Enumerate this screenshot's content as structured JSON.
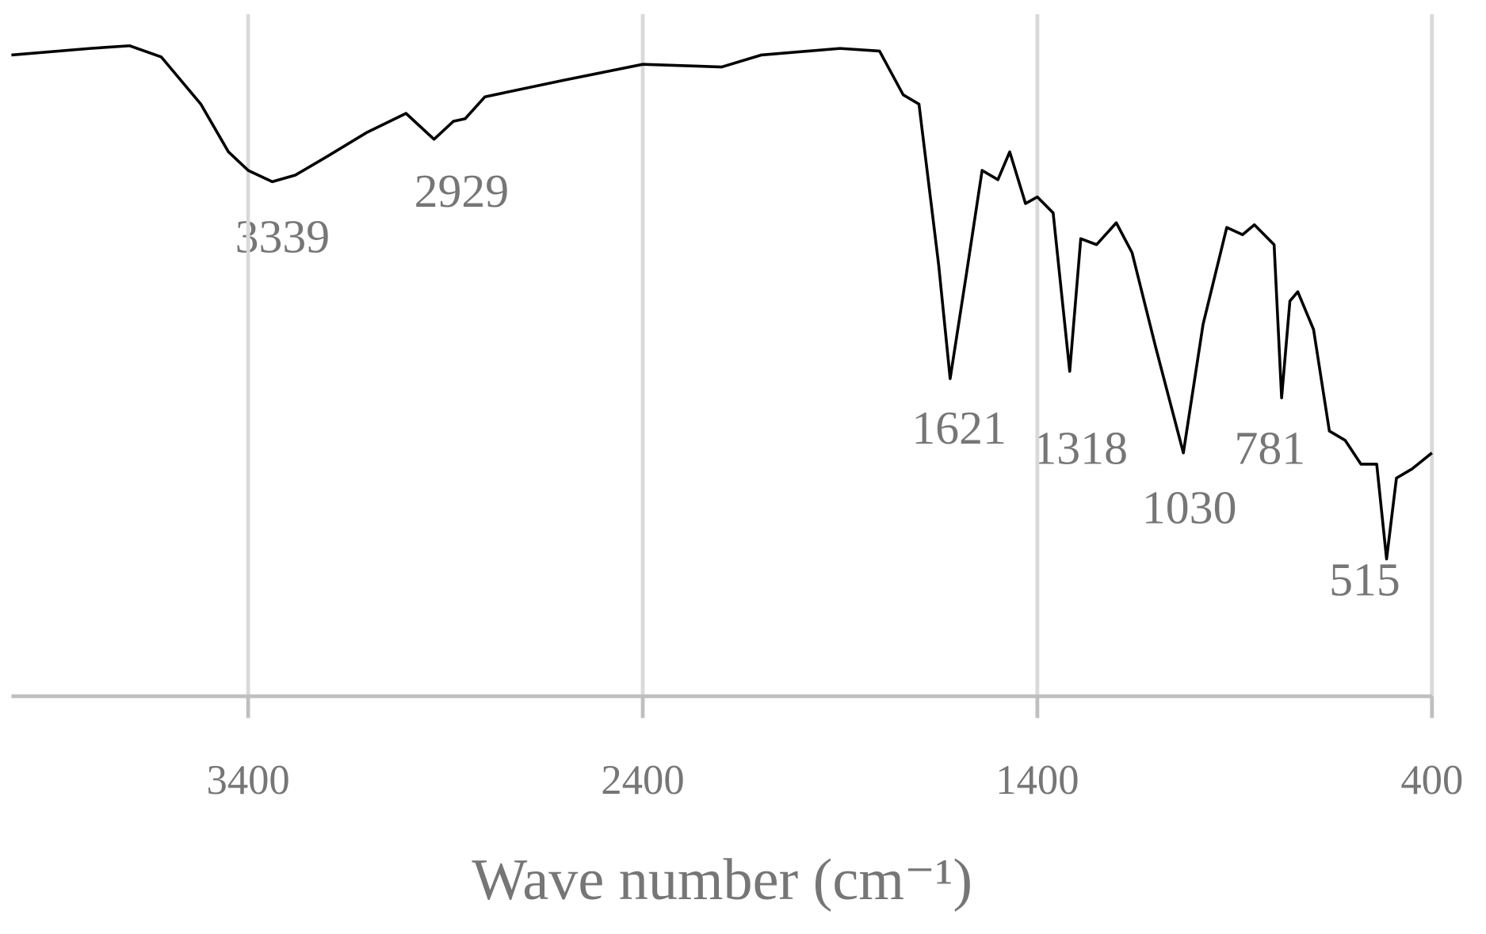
{
  "chart_data": {
    "type": "line",
    "x_label": "Wave number (cm⁻¹)",
    "xlim": [
      4000,
      400
    ],
    "xticks": [
      3400,
      2400,
      1400,
      400
    ],
    "ylim": [
      0,
      100
    ],
    "grid": true,
    "annotations": [
      "3339",
      "2929",
      "1621",
      "1318",
      "1030",
      "781",
      "515"
    ],
    "x": [
      4000,
      3800,
      3700,
      3620,
      3520,
      3450,
      3400,
      3339,
      3280,
      3200,
      3100,
      3000,
      2929,
      2880,
      2850,
      2800,
      2600,
      2400,
      2200,
      2100,
      1900,
      1800,
      1740,
      1700,
      1650,
      1621,
      1580,
      1540,
      1500,
      1470,
      1430,
      1400,
      1360,
      1318,
      1290,
      1250,
      1200,
      1160,
      1100,
      1030,
      980,
      920,
      880,
      850,
      800,
      781,
      760,
      740,
      700,
      660,
      620,
      580,
      540,
      515,
      490,
      450,
      400
    ],
    "series": [
      {
        "color": "#000000",
        "values": [
          96.7,
          97.7,
          98.1,
          96.4,
          89.3,
          82.1,
          79.3,
          77.6,
          78.6,
          81.4,
          85,
          87.9,
          84,
          86.7,
          87.1,
          90.4,
          92.9,
          95.3,
          94.9,
          96.7,
          97.7,
          97.3,
          90.7,
          89.3,
          65,
          47.9,
          63.6,
          79.3,
          77.9,
          82.1,
          74.3,
          75.3,
          72.9,
          49,
          69,
          68.1,
          71.4,
          66.9,
          52.6,
          36.7,
          56.1,
          70.7,
          69.6,
          71.1,
          68.1,
          45,
          59.6,
          61,
          55.3,
          40,
          38.6,
          35,
          35,
          20.7,
          32.9,
          34.3,
          36.7
        ]
      }
    ]
  }
}
